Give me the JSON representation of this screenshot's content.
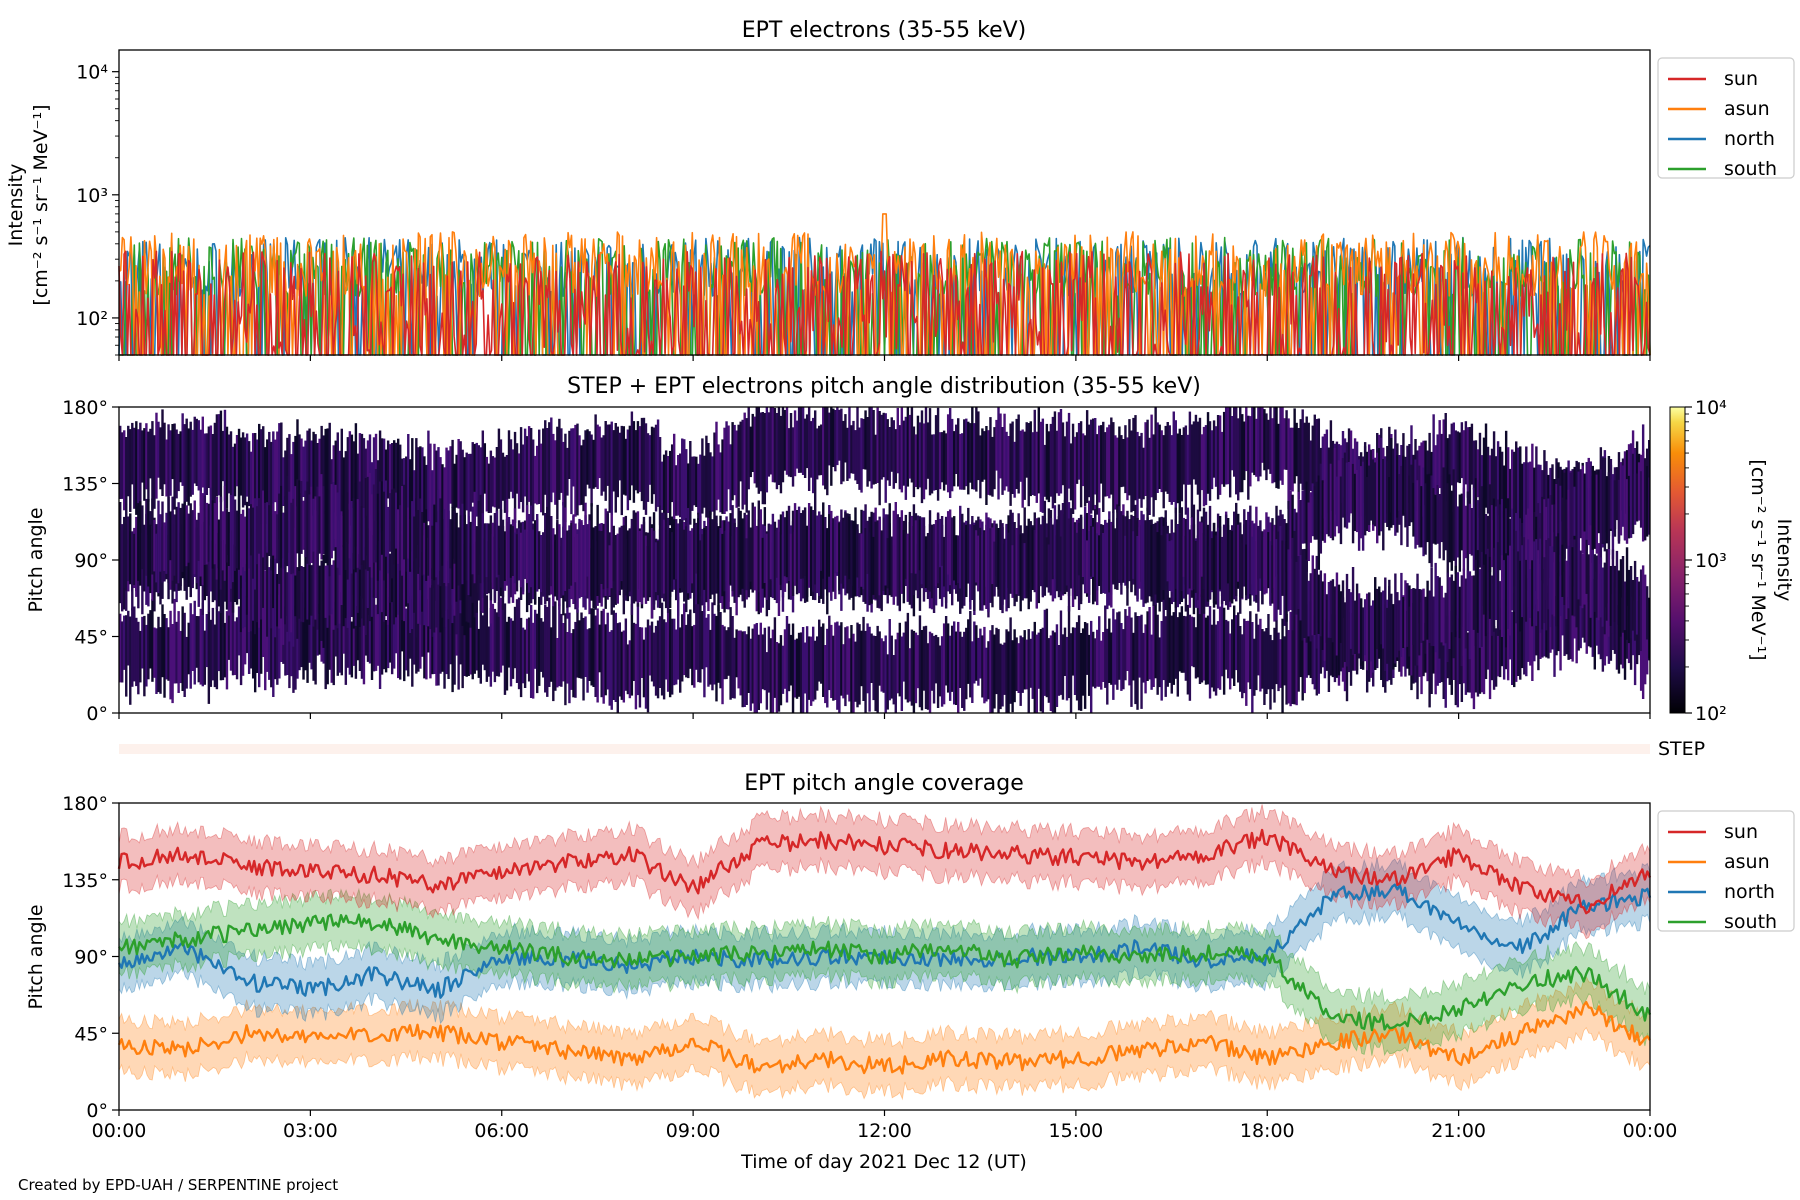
{
  "credit": "Created by EPD-UAH / SERPENTINE project",
  "colors": {
    "sun": "#d62728",
    "asun": "#ff7f0e",
    "north": "#1f77b4",
    "south": "#2ca02c",
    "step_band": "#fdf1ec"
  },
  "chart_data": [
    {
      "type": "line",
      "title": "EPT electrons (35-55 keV)",
      "ylabel": "Intensity",
      "ylabel_units": "[cm⁻² s⁻¹ sr⁻¹ MeV⁻¹]",
      "y_scale": "log",
      "ylim": [
        50,
        15000
      ],
      "y_ticks": [
        "10²",
        "10³",
        "10⁴"
      ],
      "xlim": [
        "2021-12-12 00:00",
        "2021-12-13 00:00"
      ],
      "legend_position": "outside-right",
      "series": [
        {
          "name": "sun",
          "color": "#d62728",
          "typical_range": [
            50,
            350
          ]
        },
        {
          "name": "asun",
          "color": "#ff7f0e",
          "typical_range": [
            150,
            500
          ]
        },
        {
          "name": "north",
          "color": "#1f77b4",
          "typical_range": [
            150,
            450
          ]
        },
        {
          "name": "south",
          "color": "#2ca02c",
          "typical_range": [
            150,
            450
          ]
        }
      ],
      "annotations": [
        "spike ~700 near 12:00"
      ]
    },
    {
      "type": "heatmap",
      "title": "STEP + EPT electrons pitch angle distribution (35-55 keV)",
      "ylabel": "Pitch angle",
      "ylim": [
        0,
        180
      ],
      "y_ticks": [
        "0°",
        "45°",
        "90°",
        "135°",
        "180°"
      ],
      "colorbar": {
        "label": "Intensity",
        "units": "[cm⁻² s⁻¹ sr⁻¹ MeV⁻¹]",
        "scale": "log",
        "range": [
          100,
          10000
        ],
        "ticks": [
          "10²",
          "10³",
          "10⁴"
        ],
        "colormap": "inferno"
      }
    },
    {
      "type": "heatmap",
      "label": "STEP"
    },
    {
      "type": "line",
      "title": "EPT pitch angle coverage",
      "ylabel": "Pitch angle",
      "ylim": [
        0,
        180
      ],
      "y_ticks": [
        "0°",
        "45°",
        "90°",
        "135°",
        "180°"
      ],
      "xlabel": "Time of day 2021 Dec 12 (UT)",
      "x_ticks": [
        "00:00",
        "03:00",
        "06:00",
        "09:00",
        "12:00",
        "15:00",
        "18:00",
        "21:00",
        "00:00"
      ],
      "legend_position": "outside-right",
      "x_hours": [
        0,
        1,
        2,
        3,
        4,
        5,
        6,
        7,
        8,
        9,
        10,
        11,
        12,
        13,
        14,
        15,
        16,
        17,
        18,
        19,
        20,
        21,
        22,
        23,
        24
      ],
      "series": [
        {
          "name": "sun",
          "color": "#d62728",
          "values": [
            145,
            150,
            143,
            140,
            138,
            132,
            140,
            145,
            150,
            130,
            155,
            158,
            155,
            152,
            150,
            148,
            145,
            150,
            160,
            140,
            135,
            150,
            130,
            120,
            140
          ]
        },
        {
          "name": "asun",
          "color": "#ff7f0e",
          "values": [
            38,
            35,
            45,
            42,
            45,
            45,
            40,
            35,
            30,
            40,
            25,
            30,
            25,
            30,
            28,
            30,
            35,
            40,
            30,
            40,
            45,
            30,
            45,
            60,
            40
          ]
        },
        {
          "name": "north",
          "color": "#1f77b4",
          "values": [
            85,
            95,
            75,
            70,
            80,
            70,
            90,
            88,
            85,
            90,
            88,
            90,
            90,
            88,
            90,
            90,
            95,
            88,
            90,
            125,
            130,
            110,
            95,
            120,
            125
          ]
        },
        {
          "name": "south",
          "color": "#2ca02c",
          "values": [
            95,
            100,
            105,
            110,
            110,
            100,
            95,
            90,
            88,
            90,
            92,
            95,
            90,
            95,
            88,
            92,
            90,
            92,
            90,
            55,
            50,
            60,
            75,
            80,
            55
          ]
        }
      ],
      "band_halfwidth_deg": 15
    }
  ]
}
